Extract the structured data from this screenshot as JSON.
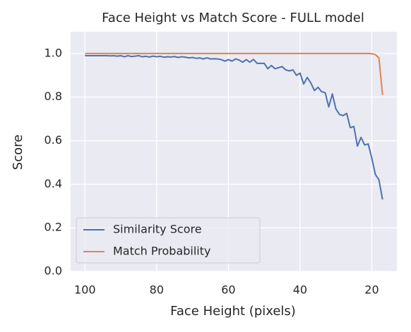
{
  "chart_data": {
    "type": "line",
    "title": "Face Height vs Match Score - FULL model",
    "x_label": "Face Height (pixels)",
    "y_label": "Score",
    "x": [
      100,
      99,
      98,
      97,
      96,
      95,
      94,
      93,
      92,
      91,
      90,
      89,
      88,
      87,
      86,
      85,
      84,
      83,
      82,
      81,
      80,
      79,
      78,
      77,
      76,
      75,
      74,
      73,
      72,
      71,
      70,
      69,
      68,
      67,
      66,
      65,
      64,
      63,
      62,
      61,
      60,
      59,
      58,
      57,
      56,
      55,
      54,
      53,
      52,
      51,
      50,
      49,
      48,
      47,
      46,
      45,
      44,
      43,
      42,
      41,
      40,
      39,
      38,
      37,
      36,
      35,
      34,
      33,
      32,
      31,
      30,
      29,
      28,
      27,
      26,
      25,
      24,
      23,
      22,
      21,
      20,
      19,
      18,
      17
    ],
    "series": [
      {
        "name": "Similarity Score",
        "color": "#4c72b0",
        "values": [
          0.99,
          0.99,
          0.99,
          0.99,
          0.99,
          0.99,
          0.99,
          0.989,
          0.99,
          0.988,
          0.99,
          0.985,
          0.99,
          0.986,
          0.988,
          0.99,
          0.985,
          0.987,
          0.984,
          0.988,
          0.985,
          0.987,
          0.983,
          0.985,
          0.984,
          0.986,
          0.982,
          0.985,
          0.983,
          0.98,
          0.982,
          0.978,
          0.98,
          0.975,
          0.98,
          0.975,
          0.976,
          0.975,
          0.972,
          0.965,
          0.972,
          0.965,
          0.975,
          0.97,
          0.96,
          0.972,
          0.96,
          0.973,
          0.955,
          0.955,
          0.955,
          0.93,
          0.945,
          0.93,
          0.935,
          0.94,
          0.925,
          0.92,
          0.925,
          0.9,
          0.91,
          0.86,
          0.89,
          0.865,
          0.83,
          0.845,
          0.825,
          0.82,
          0.755,
          0.815,
          0.745,
          0.72,
          0.715,
          0.725,
          0.66,
          0.665,
          0.575,
          0.615,
          0.58,
          0.585,
          0.52,
          0.445,
          0.42,
          0.33
        ]
      },
      {
        "name": "Match Probability",
        "color": "#dd8452",
        "values": [
          1,
          1,
          1,
          1,
          1,
          1,
          1,
          1,
          1,
          1,
          1,
          1,
          1,
          1,
          1,
          1,
          1,
          1,
          1,
          1,
          1,
          1,
          1,
          1,
          1,
          1,
          1,
          1,
          1,
          1,
          1,
          1,
          1,
          1,
          1,
          1,
          1,
          1,
          1,
          1,
          1,
          1,
          1,
          1,
          1,
          1,
          1,
          1,
          1,
          1,
          1,
          1,
          1,
          1,
          1,
          1,
          1,
          1,
          1,
          1,
          1,
          1,
          1,
          1,
          1,
          1,
          1,
          1,
          1,
          1,
          1,
          1,
          1,
          1,
          1,
          1,
          1,
          1,
          1,
          1,
          0.999,
          0.995,
          0.98,
          0.81
        ]
      }
    ],
    "xlim": [
      104,
      13
    ],
    "ylim": [
      0,
      1.1
    ],
    "xticks": [
      100,
      80,
      60,
      40,
      20
    ],
    "yticks": [
      {
        "value": 0,
        "label": "0.0"
      },
      0.2,
      0.4,
      0.6,
      0.8,
      {
        "value": 1,
        "label": "1.0"
      }
    ],
    "grid": true,
    "legend": "lower left"
  }
}
